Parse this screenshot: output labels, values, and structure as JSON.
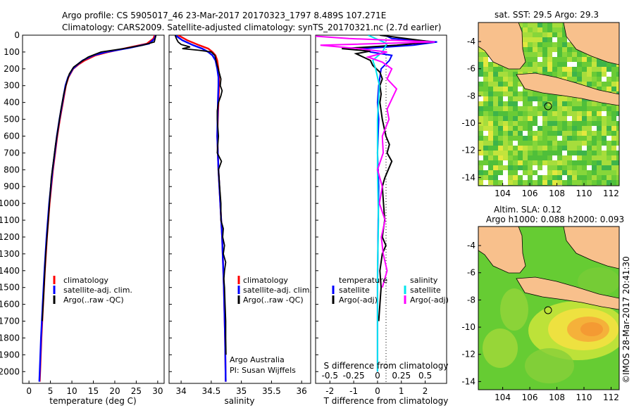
{
  "header": {
    "line1": "Argo profile: CS 5905017_46 23-Mar-2017 20170323_1797 8.489S 107.271E",
    "line2": "Climatology: CARS2009. Satellite-adjusted climatology: synTS_20170321.nc (2.7d earlier)"
  },
  "colors": {
    "climatology": "#ff0000",
    "satellite": "#0000ff",
    "argo": "#000000",
    "salinity_satellite": "#00e5ee",
    "salinity_argo": "#ff00ff",
    "land": "#f8c08c"
  },
  "chart_data": [
    {
      "id": "temperature",
      "type": "line",
      "xlabel": "temperature (deg C)",
      "ylabel": "depth",
      "xlim": [
        -1.5,
        31.5
      ],
      "ylim": [
        2070,
        0
      ],
      "xticks": [
        0,
        5,
        10,
        15,
        20,
        25,
        30
      ],
      "yticks": [
        0,
        100,
        200,
        300,
        400,
        500,
        600,
        700,
        800,
        900,
        1000,
        1100,
        1200,
        1300,
        1400,
        1500,
        1600,
        1700,
        1800,
        1900,
        2000
      ],
      "legend": [
        "climatology",
        "satellite-adj. clim.",
        "Argo(..raw -QC)"
      ],
      "legend_position": "lower-middle",
      "series": [
        {
          "name": "climatology",
          "color": "#ff0000",
          "depth": [
            0,
            20,
            50,
            75,
            100,
            120,
            150,
            175,
            200,
            250,
            300,
            400,
            500,
            600,
            700,
            800,
            900,
            1000,
            1200,
            1400,
            1600,
            1800,
            2000,
            2060
          ],
          "values": [
            29.3,
            29.0,
            27.5,
            23.0,
            18.5,
            15.5,
            13.0,
            11.5,
            10.3,
            9.2,
            8.6,
            7.9,
            7.2,
            6.6,
            6.1,
            5.6,
            5.2,
            4.8,
            4.2,
            3.7,
            3.3,
            2.9,
            2.6,
            2.5
          ]
        },
        {
          "name": "satellite-adj. clim.",
          "color": "#0000ff",
          "depth": [
            0,
            20,
            50,
            75,
            100,
            120,
            150,
            175,
            200,
            250,
            300,
            400,
            500,
            600,
            700,
            800,
            900,
            1000,
            1200,
            1400,
            1600,
            1800,
            2000,
            2060
          ],
          "values": [
            29.5,
            29.3,
            28.0,
            23.5,
            18.0,
            15.0,
            12.5,
            11.3,
            10.2,
            9.1,
            8.5,
            7.8,
            7.1,
            6.5,
            6.0,
            5.5,
            5.1,
            4.7,
            4.1,
            3.6,
            3.2,
            2.8,
            2.5,
            2.4
          ]
        },
        {
          "name": "Argo(..raw -QC)",
          "color": "#000000",
          "depth": [
            0,
            10,
            40,
            60,
            80,
            100,
            130,
            160,
            190,
            230,
            280,
            350,
            450,
            550,
            650,
            750,
            850,
            950,
            1100,
            1300,
            1500,
            1700
          ],
          "values": [
            29.6,
            29.5,
            29.2,
            26.5,
            22.0,
            16.8,
            13.8,
            12.0,
            10.4,
            9.4,
            8.8,
            8.1,
            7.4,
            6.8,
            6.2,
            5.7,
            5.2,
            4.9,
            4.5,
            3.9,
            3.5,
            3.1
          ]
        }
      ]
    },
    {
      "id": "salinity",
      "type": "line",
      "xlabel": "salinity",
      "xlim": [
        33.8,
        36.15
      ],
      "ylim": [
        2070,
        0
      ],
      "xticks": [
        34,
        34.5,
        35,
        35.5,
        36
      ],
      "legend": [
        "climatology",
        "satellite-adj. clim.",
        "Argo(..raw -QC)"
      ],
      "legend_position": "lower-right",
      "annotations": [
        "Argo Australia",
        "PI: Susan Wijffels"
      ],
      "series": [
        {
          "name": "climatology",
          "color": "#ff0000",
          "depth": [
            0,
            30,
            60,
            80,
            100,
            120,
            150,
            200,
            250,
            300,
            400,
            600,
            800,
            1000,
            1200,
            1500,
            1800,
            2060
          ],
          "values": [
            33.95,
            34.1,
            34.3,
            34.45,
            34.52,
            34.57,
            34.6,
            34.62,
            34.63,
            34.63,
            34.62,
            34.6,
            34.62,
            34.65,
            34.68,
            34.71,
            34.73,
            34.74
          ]
        },
        {
          "name": "satellite-adj. clim.",
          "color": "#0000ff",
          "depth": [
            0,
            30,
            60,
            80,
            100,
            120,
            150,
            200,
            250,
            300,
            400,
            600,
            800,
            1000,
            1200,
            1500,
            1800,
            2060
          ],
          "values": [
            33.9,
            34.02,
            34.2,
            34.35,
            34.45,
            34.52,
            34.57,
            34.6,
            34.62,
            34.62,
            34.61,
            34.6,
            34.62,
            34.65,
            34.68,
            34.71,
            34.73,
            34.74
          ]
        },
        {
          "name": "Argo(..raw -QC)",
          "color": "#000000",
          "depth": [
            0,
            20,
            40,
            55,
            70,
            80,
            90,
            100,
            120,
            150,
            180,
            220,
            260,
            300,
            330,
            360,
            400,
            450,
            500,
            600,
            700,
            750,
            800,
            850,
            900,
            1000,
            1100,
            1150,
            1200,
            1250,
            1300,
            1350,
            1400,
            1450,
            1500,
            1600,
            1700,
            1800,
            1900
          ],
          "values": [
            33.9,
            33.92,
            33.95,
            34.0,
            34.15,
            34.02,
            34.3,
            34.5,
            34.56,
            34.58,
            34.6,
            34.63,
            34.66,
            34.65,
            34.68,
            34.66,
            34.62,
            34.6,
            34.6,
            34.62,
            34.6,
            34.67,
            34.62,
            34.63,
            34.64,
            34.66,
            34.66,
            34.7,
            34.69,
            34.72,
            34.7,
            34.74,
            34.72,
            34.71,
            34.72,
            34.73,
            34.74,
            34.74,
            34.745
          ]
        }
      ]
    },
    {
      "id": "difference",
      "type": "line",
      "xlabel": "T difference from climatology",
      "top_xlabel": "S difference from climatology",
      "xlim": [
        -2.6,
        2.9
      ],
      "xticks": [
        -2,
        -1,
        0,
        1,
        2
      ],
      "top_xticks": [
        "-0.5",
        "-0.25",
        "0",
        "0.25",
        "0.5"
      ],
      "legend_temperature": {
        "title": "temperature",
        "items": [
          "satellite",
          "Argo(-adj)"
        ]
      },
      "legend_salinity": {
        "title": "salinity",
        "items": [
          "satellite",
          "Argo(-adj)"
        ]
      },
      "legend_position": "lower-middle",
      "series": [
        {
          "name": "temperature satellite",
          "color": "#0000ff",
          "depth": [
            0,
            20,
            40,
            60,
            80,
            100,
            120,
            150,
            200,
            300,
            400,
            500,
            700,
            900,
            1200,
            1500,
            1800,
            2000
          ],
          "values": [
            0.3,
            0.6,
            2.5,
            1.5,
            -0.6,
            -0.3,
            0.6,
            0.5,
            0.15,
            0.05,
            0.0,
            0.05,
            0.0,
            0.05,
            0.02,
            0.0,
            0.0,
            0.0
          ]
        },
        {
          "name": "temperature Argo(-adj)",
          "color": "#000000",
          "depth": [
            0,
            40,
            60,
            80,
            95,
            110,
            130,
            150,
            180,
            220,
            260,
            300,
            350,
            400,
            500,
            600,
            650,
            700,
            750,
            800,
            850,
            900,
            1000,
            1100,
            1200,
            1250,
            1300,
            1400,
            1500,
            1600,
            1700
          ],
          "values": [
            0.1,
            2.3,
            0.8,
            -1.5,
            -0.3,
            -0.9,
            -0.6,
            -0.3,
            -0.2,
            0.1,
            0.2,
            0.1,
            0.15,
            0.1,
            0.2,
            0.35,
            0.5,
            0.4,
            0.6,
            0.45,
            0.3,
            0.2,
            0.25,
            0.3,
            0.2,
            0.35,
            0.2,
            0.1,
            0.15,
            0.1,
            0.05
          ]
        },
        {
          "name": "salinity satellite",
          "color": "#00e5ee",
          "depth": [
            0,
            50,
            100,
            150,
            200,
            300,
            500,
            800,
            1100,
            1400,
            1700,
            2000
          ],
          "values": [
            -0.1,
            0.1,
            0.05,
            -0.05,
            -0.02,
            0.02,
            0.0,
            0.0,
            0.01,
            0.0,
            0.0,
            0.0
          ]
        },
        {
          "name": "salinity Argo(-adj)",
          "color": "#ff00ff",
          "depth": [
            0,
            20,
            40,
            60,
            80,
            100,
            130,
            160,
            200,
            260,
            320,
            380,
            440,
            500,
            600,
            700,
            800,
            900,
            1000,
            1100,
            1200,
            1300,
            1400,
            1500
          ],
          "values": [
            -0.8,
            -0.3,
            0.6,
            -0.6,
            -0.2,
            0.1,
            -0.1,
            0.05,
            0.15,
            0.1,
            0.2,
            0.15,
            0.1,
            0.12,
            0.05,
            0.06,
            0.0,
            0.05,
            0.02,
            0.08,
            0.04,
            0.06,
            0.1,
            0.05
          ]
        }
      ]
    },
    {
      "id": "sst-map",
      "type": "heatmap",
      "title": "sat. SST: 29.5 Argo: 29.3",
      "xticks": [
        104,
        106,
        108,
        110,
        112
      ],
      "yticks": [
        -4,
        -6,
        -8,
        -10,
        -12,
        -14
      ],
      "xlim": [
        102.2,
        112.6
      ],
      "ylim": [
        -14.6,
        -2.6
      ],
      "marker": {
        "lon": 107.271,
        "lat": -8.489
      }
    },
    {
      "id": "sla-map",
      "type": "heatmap",
      "title": "Altim. SLA: 0.12",
      "subtitle": "Argo h1000: 0.088 h2000: 0.093",
      "xticks": [
        104,
        106,
        108,
        110,
        112
      ],
      "yticks": [
        -4,
        -6,
        -8,
        -10,
        -12,
        -14
      ],
      "xlim": [
        102.2,
        112.6
      ],
      "ylim": [
        -14.6,
        -2.6
      ],
      "marker": {
        "lon": 107.271,
        "lat": -8.489
      }
    }
  ],
  "footer": {
    "credit": "©IMOS 28-Mar-2017 20:41:30"
  }
}
